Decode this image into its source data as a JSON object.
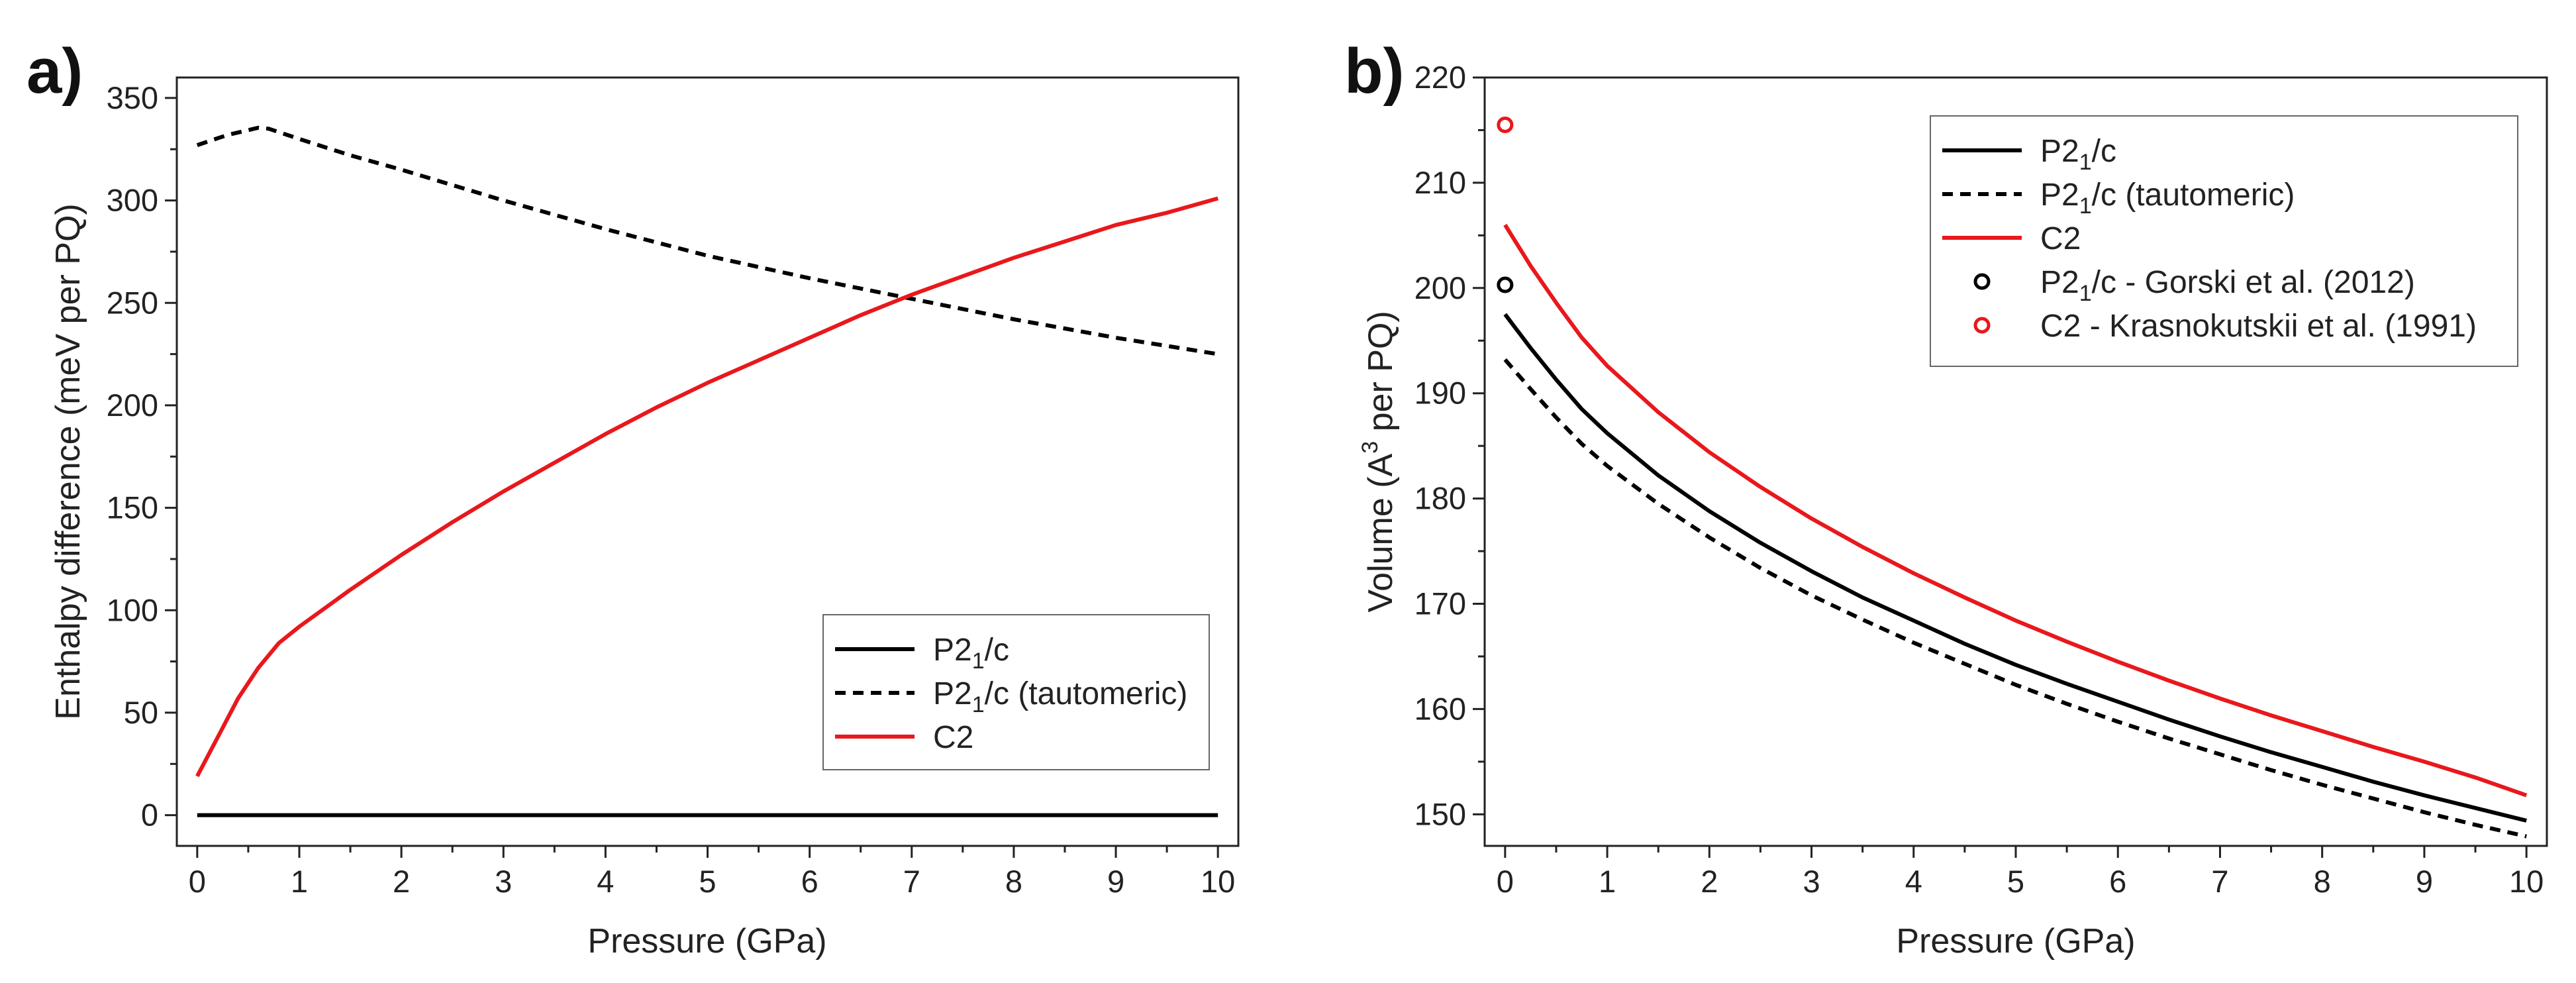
{
  "chart_data": [
    {
      "panel": "a)",
      "type": "line",
      "xlabel": "Pressure (GPa)",
      "ylabel": "Enthalpy difference (meV per PQ)",
      "xlim": [
        -0.2,
        10.2
      ],
      "ylim": [
        -15,
        360
      ],
      "xticks": [
        0,
        1,
        2,
        3,
        4,
        5,
        6,
        7,
        8,
        9,
        10
      ],
      "yticks": [
        0,
        50,
        100,
        150,
        200,
        250,
        300,
        350
      ],
      "legend_position": "bottom-right",
      "series": [
        {
          "name": "P21/c",
          "base": "P2",
          "sub": "1",
          "rest": "/c",
          "color": "#000000",
          "dash": "solid",
          "x": [
            0,
            10
          ],
          "y": [
            0,
            0
          ]
        },
        {
          "name": "P21/c (tautomeric)",
          "base": "P2",
          "sub": "1",
          "rest": "/c (tautomeric)",
          "color": "#000000",
          "dash": "dashed",
          "x": [
            0,
            0.3,
            0.6,
            0.7,
            1,
            1.5,
            2,
            3,
            4,
            5,
            6,
            7,
            8,
            9,
            10
          ],
          "y": [
            327,
            332,
            335.5,
            335,
            330,
            322,
            315,
            300,
            286,
            273,
            262,
            252,
            242,
            233,
            225
          ]
        },
        {
          "name": "C2",
          "base": "C2",
          "sub": "",
          "rest": "",
          "color": "#e8181c",
          "dash": "solid",
          "x": [
            0,
            0.2,
            0.4,
            0.6,
            0.8,
            1,
            1.5,
            2,
            2.5,
            3,
            3.5,
            4,
            4.5,
            5,
            5.5,
            6,
            6.5,
            7,
            7.5,
            8,
            8.5,
            9,
            9.5,
            10
          ],
          "y": [
            19,
            38,
            57,
            72,
            84,
            92,
            110,
            127,
            143,
            158,
            172,
            186,
            199,
            211,
            222,
            233,
            244,
            254,
            263,
            272,
            280,
            288,
            294,
            301
          ]
        }
      ]
    },
    {
      "panel": "b)",
      "type": "line",
      "xlabel": "Pressure (GPa)",
      "ylabel_pre": "Volume (A",
      "ylabel_sup": "3",
      "ylabel_post": " per PQ)",
      "xlim": [
        -0.2,
        10.2
      ],
      "ylim": [
        147,
        220
      ],
      "xticks": [
        0,
        1,
        2,
        3,
        4,
        5,
        6,
        7,
        8,
        9,
        10
      ],
      "yticks": [
        150,
        160,
        170,
        180,
        190,
        200,
        210,
        220
      ],
      "legend_position": "top-right",
      "series": [
        {
          "name": "P21/c",
          "base": "P2",
          "sub": "1",
          "rest": "/c",
          "color": "#000000",
          "dash": "solid",
          "x": [
            0,
            0.25,
            0.5,
            0.75,
            1,
            1.5,
            2,
            2.5,
            3,
            3.5,
            4,
            4.5,
            5,
            5.5,
            6,
            6.5,
            7,
            7.5,
            8,
            8.5,
            9,
            9.5,
            10
          ],
          "y": [
            197.5,
            194.3,
            191.3,
            188.5,
            186.2,
            182.2,
            178.8,
            175.8,
            173.1,
            170.6,
            168.4,
            166.2,
            164.2,
            162.4,
            160.7,
            159.0,
            157.4,
            155.9,
            154.5,
            153.1,
            151.8,
            150.6,
            149.4
          ]
        },
        {
          "name": "P21/c (tautomeric)",
          "base": "P2",
          "sub": "1",
          "rest": "/c (tautomeric)",
          "color": "#000000",
          "dash": "dashed",
          "x": [
            0,
            0.25,
            0.5,
            0.75,
            1,
            1.5,
            2,
            2.5,
            3,
            3.5,
            4,
            4.5,
            5,
            5.5,
            6,
            6.5,
            7,
            7.5,
            8,
            8.5,
            9,
            9.5,
            10
          ],
          "y": [
            193.2,
            190.4,
            187.7,
            185.2,
            183.1,
            179.5,
            176.3,
            173.4,
            170.8,
            168.5,
            166.3,
            164.3,
            162.3,
            160.5,
            158.8,
            157.2,
            155.7,
            154.2,
            152.8,
            151.5,
            150.2,
            149.0,
            147.9
          ]
        },
        {
          "name": "C2",
          "base": "C2",
          "sub": "",
          "rest": "",
          "color": "#e8181c",
          "dash": "solid",
          "x": [
            0,
            0.25,
            0.5,
            0.75,
            1,
            1.5,
            2,
            2.5,
            3,
            3.5,
            4,
            4.5,
            5,
            5.5,
            6,
            6.5,
            7,
            7.5,
            8,
            8.5,
            9,
            9.5,
            10
          ],
          "y": [
            206.0,
            202.1,
            198.6,
            195.3,
            192.6,
            188.2,
            184.4,
            181.1,
            178.1,
            175.4,
            172.9,
            170.6,
            168.4,
            166.4,
            164.5,
            162.7,
            161.0,
            159.4,
            157.9,
            156.4,
            155.0,
            153.5,
            151.8
          ]
        },
        {
          "name": "P21/c - Gorski et al. (2012)",
          "base": "P2",
          "sub": "1",
          "rest": "/c - Gorski et al. (2012)",
          "color": "#000000",
          "marker": "circle",
          "x": [
            0
          ],
          "y": [
            200.3
          ]
        },
        {
          "name": "C2 - Krasnokutskii et al. (1991)",
          "base": "C2 - Krasnokutskii et al. (1991)",
          "sub": "",
          "rest": "",
          "color": "#e8181c",
          "marker": "circle",
          "x": [
            0
          ],
          "y": [
            215.5
          ]
        }
      ]
    }
  ]
}
